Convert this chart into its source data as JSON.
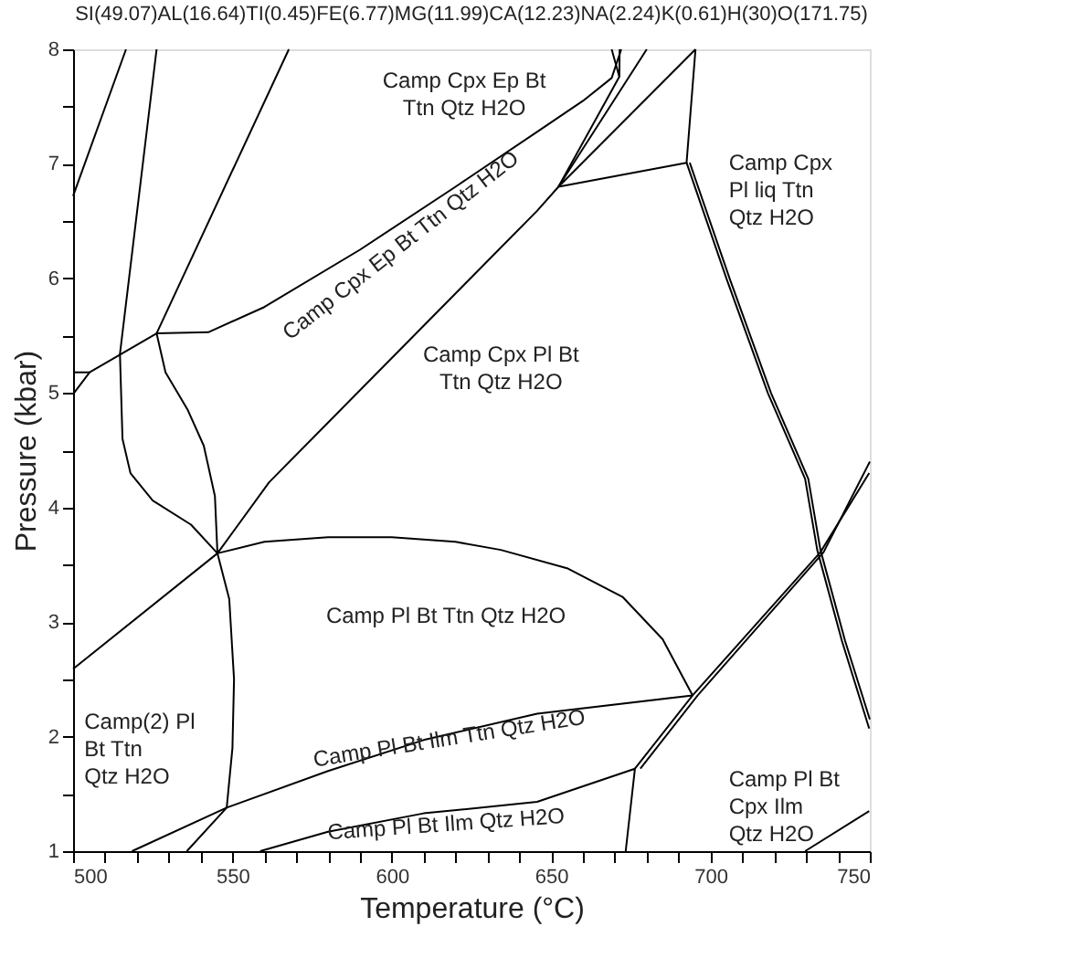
{
  "chart_data": {
    "type": "line",
    "title": "SI(49.07)AL(16.64)TI(0.45)FE(6.77)MG(11.99)CA(12.23)NA(2.24)K(0.61)H(30)O(171.75)",
    "xlabel": "Temperature (°C)",
    "ylabel": "Pressure (kbar)",
    "xlim": [
      500,
      750
    ],
    "ylim": [
      1,
      8
    ],
    "xticks": [
      500,
      {
        "value": 510,
        "label": null
      },
      {
        "value": 520,
        "label": null
      },
      {
        "value": 530,
        "label": null
      },
      {
        "value": 540,
        "label": null
      },
      550,
      {
        "value": 560,
        "label": null
      },
      {
        "value": 570,
        "label": null
      },
      {
        "value": 580,
        "label": null
      },
      {
        "value": 590,
        "label": null
      },
      600,
      {
        "value": 610,
        "label": null
      },
      {
        "value": 620,
        "label": null
      },
      {
        "value": 630,
        "label": null
      },
      {
        "value": 640,
        "label": null
      },
      650,
      {
        "value": 660,
        "label": null
      },
      {
        "value": 670,
        "label": null
      },
      {
        "value": 680,
        "label": null
      },
      {
        "value": 690,
        "label": null
      },
      700,
      {
        "value": 710,
        "label": null
      },
      {
        "value": 720,
        "label": null
      },
      {
        "value": 730,
        "label": null
      },
      {
        "value": 740,
        "label": null
      },
      750
    ],
    "yticks": [
      1,
      {
        "value": 1.5,
        "label": null
      },
      2,
      {
        "value": 2.5,
        "label": null
      },
      3,
      {
        "value": 3.5,
        "label": null
      },
      4,
      {
        "value": 4.5,
        "label": null
      },
      5,
      {
        "value": 5.5,
        "label": null
      },
      6,
      {
        "value": 6.5,
        "label": null
      },
      7,
      {
        "value": 7.5,
        "label": null
      },
      8
    ],
    "grid": false,
    "legend": false,
    "marker": "none",
    "line_style": "solid",
    "series": [
      {
        "color": "#000000",
        "x": [
          500,
          516.6
        ],
        "values": [
          6.72,
          8
        ]
      },
      {
        "color": "#000000",
        "x": [
          526.2,
          514.7,
          515.5,
          518,
          525,
          537,
          545.3
        ],
        "values": [
          8,
          5.34,
          4.6,
          4.3,
          4.06,
          3.85,
          3.6
        ]
      },
      {
        "color": "#000000",
        "x": [
          567.7,
          526.2
        ],
        "values": [
          8,
          5.52
        ]
      },
      {
        "color": "#000000",
        "x": [
          526.2,
          529,
          536,
          541,
          544.5,
          545.3,
          549,
          550.5,
          550,
          548.2,
          535.7
        ],
        "values": [
          5.52,
          5.18,
          4.85,
          4.54,
          4.1,
          3.6,
          3.2,
          2.5,
          1.9,
          1.38,
          1
        ]
      },
      {
        "color": "#000000",
        "x": [
          500,
          505.2
        ],
        "values": [
          5.18,
          5.18
        ]
      },
      {
        "color": "#000000",
        "x": [
          500,
          505.2,
          526.2
        ],
        "values": [
          4.99,
          5.18,
          5.52
        ]
      },
      {
        "color": "#000000",
        "x": [
          526.2,
          542.4,
          560,
          590,
          620,
          645.6,
          660,
          669,
          672
        ],
        "values": [
          5.52,
          5.53,
          5.75,
          6.25,
          6.8,
          7.28,
          7.55,
          7.75,
          8
        ]
      },
      {
        "color": "#000000",
        "x": [
          545.3,
          561.5,
          645.6,
          652.3,
          671.4,
          669
        ],
        "values": [
          3.6,
          4.22,
          6.59,
          6.8,
          7.76,
          8
        ]
      },
      {
        "color": "#000000",
        "x": [
          671.4,
          671.5
        ],
        "values": [
          7.76,
          8
        ]
      },
      {
        "color": "#000000",
        "x": [
          652.3,
          680
        ],
        "values": [
          6.8,
          8
        ]
      },
      {
        "color": "#000000",
        "x": [
          652.3,
          695.3
        ],
        "values": [
          6.8,
          8
        ]
      },
      {
        "color": "#000000",
        "x": [
          652.3,
          692.5,
          695.3
        ],
        "values": [
          6.8,
          7.01,
          8
        ]
      },
      {
        "color": "#000000",
        "x": [
          692.5,
          705,
          718,
          729.7,
          733.5,
          741.2,
          749.8
        ],
        "values": [
          7.01,
          6.0,
          5.0,
          4.25,
          3.63,
          2.84,
          2.07
        ]
      },
      {
        "color": "#000000",
        "x": [
          693.5,
          706,
          719,
          730.7,
          734.5,
          742.2,
          750
        ],
        "values": [
          7.01,
          6.0,
          5.0,
          4.25,
          3.63,
          2.84,
          2.15
        ]
      },
      {
        "color": "#000000",
        "x": [
          676.3,
          694.4,
          734.5,
          749.8
        ],
        "values": [
          1.72,
          2.36,
          3.61,
          4.3
        ]
      },
      {
        "color": "#000000",
        "x": [
          678,
          696,
          735.5,
          750
        ],
        "values": [
          1.72,
          2.36,
          3.61,
          4.4
        ]
      },
      {
        "color": "#000000",
        "x": [
          500,
          545.3,
          560,
          580,
          600,
          620,
          634.2,
          655,
          672.4,
          685,
          694.4
        ],
        "values": [
          2.59,
          3.6,
          3.7,
          3.74,
          3.74,
          3.7,
          3.63,
          3.47,
          3.22,
          2.85,
          2.36
        ]
      },
      {
        "color": "#000000",
        "x": [
          518.5,
          548.2,
          580,
          610,
          645.6,
          694.4
        ],
        "values": [
          1,
          1.38,
          1.7,
          1.97,
          2.2,
          2.36
        ]
      },
      {
        "color": "#000000",
        "x": [
          558.7,
          580,
          610,
          645.6,
          676.3,
          673.4
        ],
        "values": [
          1,
          1.17,
          1.33,
          1.43,
          1.72,
          1
        ]
      },
      {
        "color": "#000000",
        "x": [
          729.7,
          749.8
        ],
        "values": [
          1,
          1.35
        ]
      }
    ],
    "annotations": [
      "Camp Cpx Ep Bt\nTtn Qtz H2O",
      "Camp Cpx\nPl liq Ttn\nQtz H2O",
      "Camp Cpx Ep Bt Ttn Qtz H2O",
      "Camp Cpx Pl Bt\nTtn Qtz H2O",
      "Camp Pl Bt Ttn Qtz H2O",
      "Camp(2) Pl\nBt Ttn\nQtz H2O",
      "Camp Pl Bt Ilm Ttn Qtz H2O",
      "Camp Pl Bt Ilm Qtz H2O",
      "Camp Pl Bt\nCpx Ilm\nQtz H2O"
    ]
  }
}
